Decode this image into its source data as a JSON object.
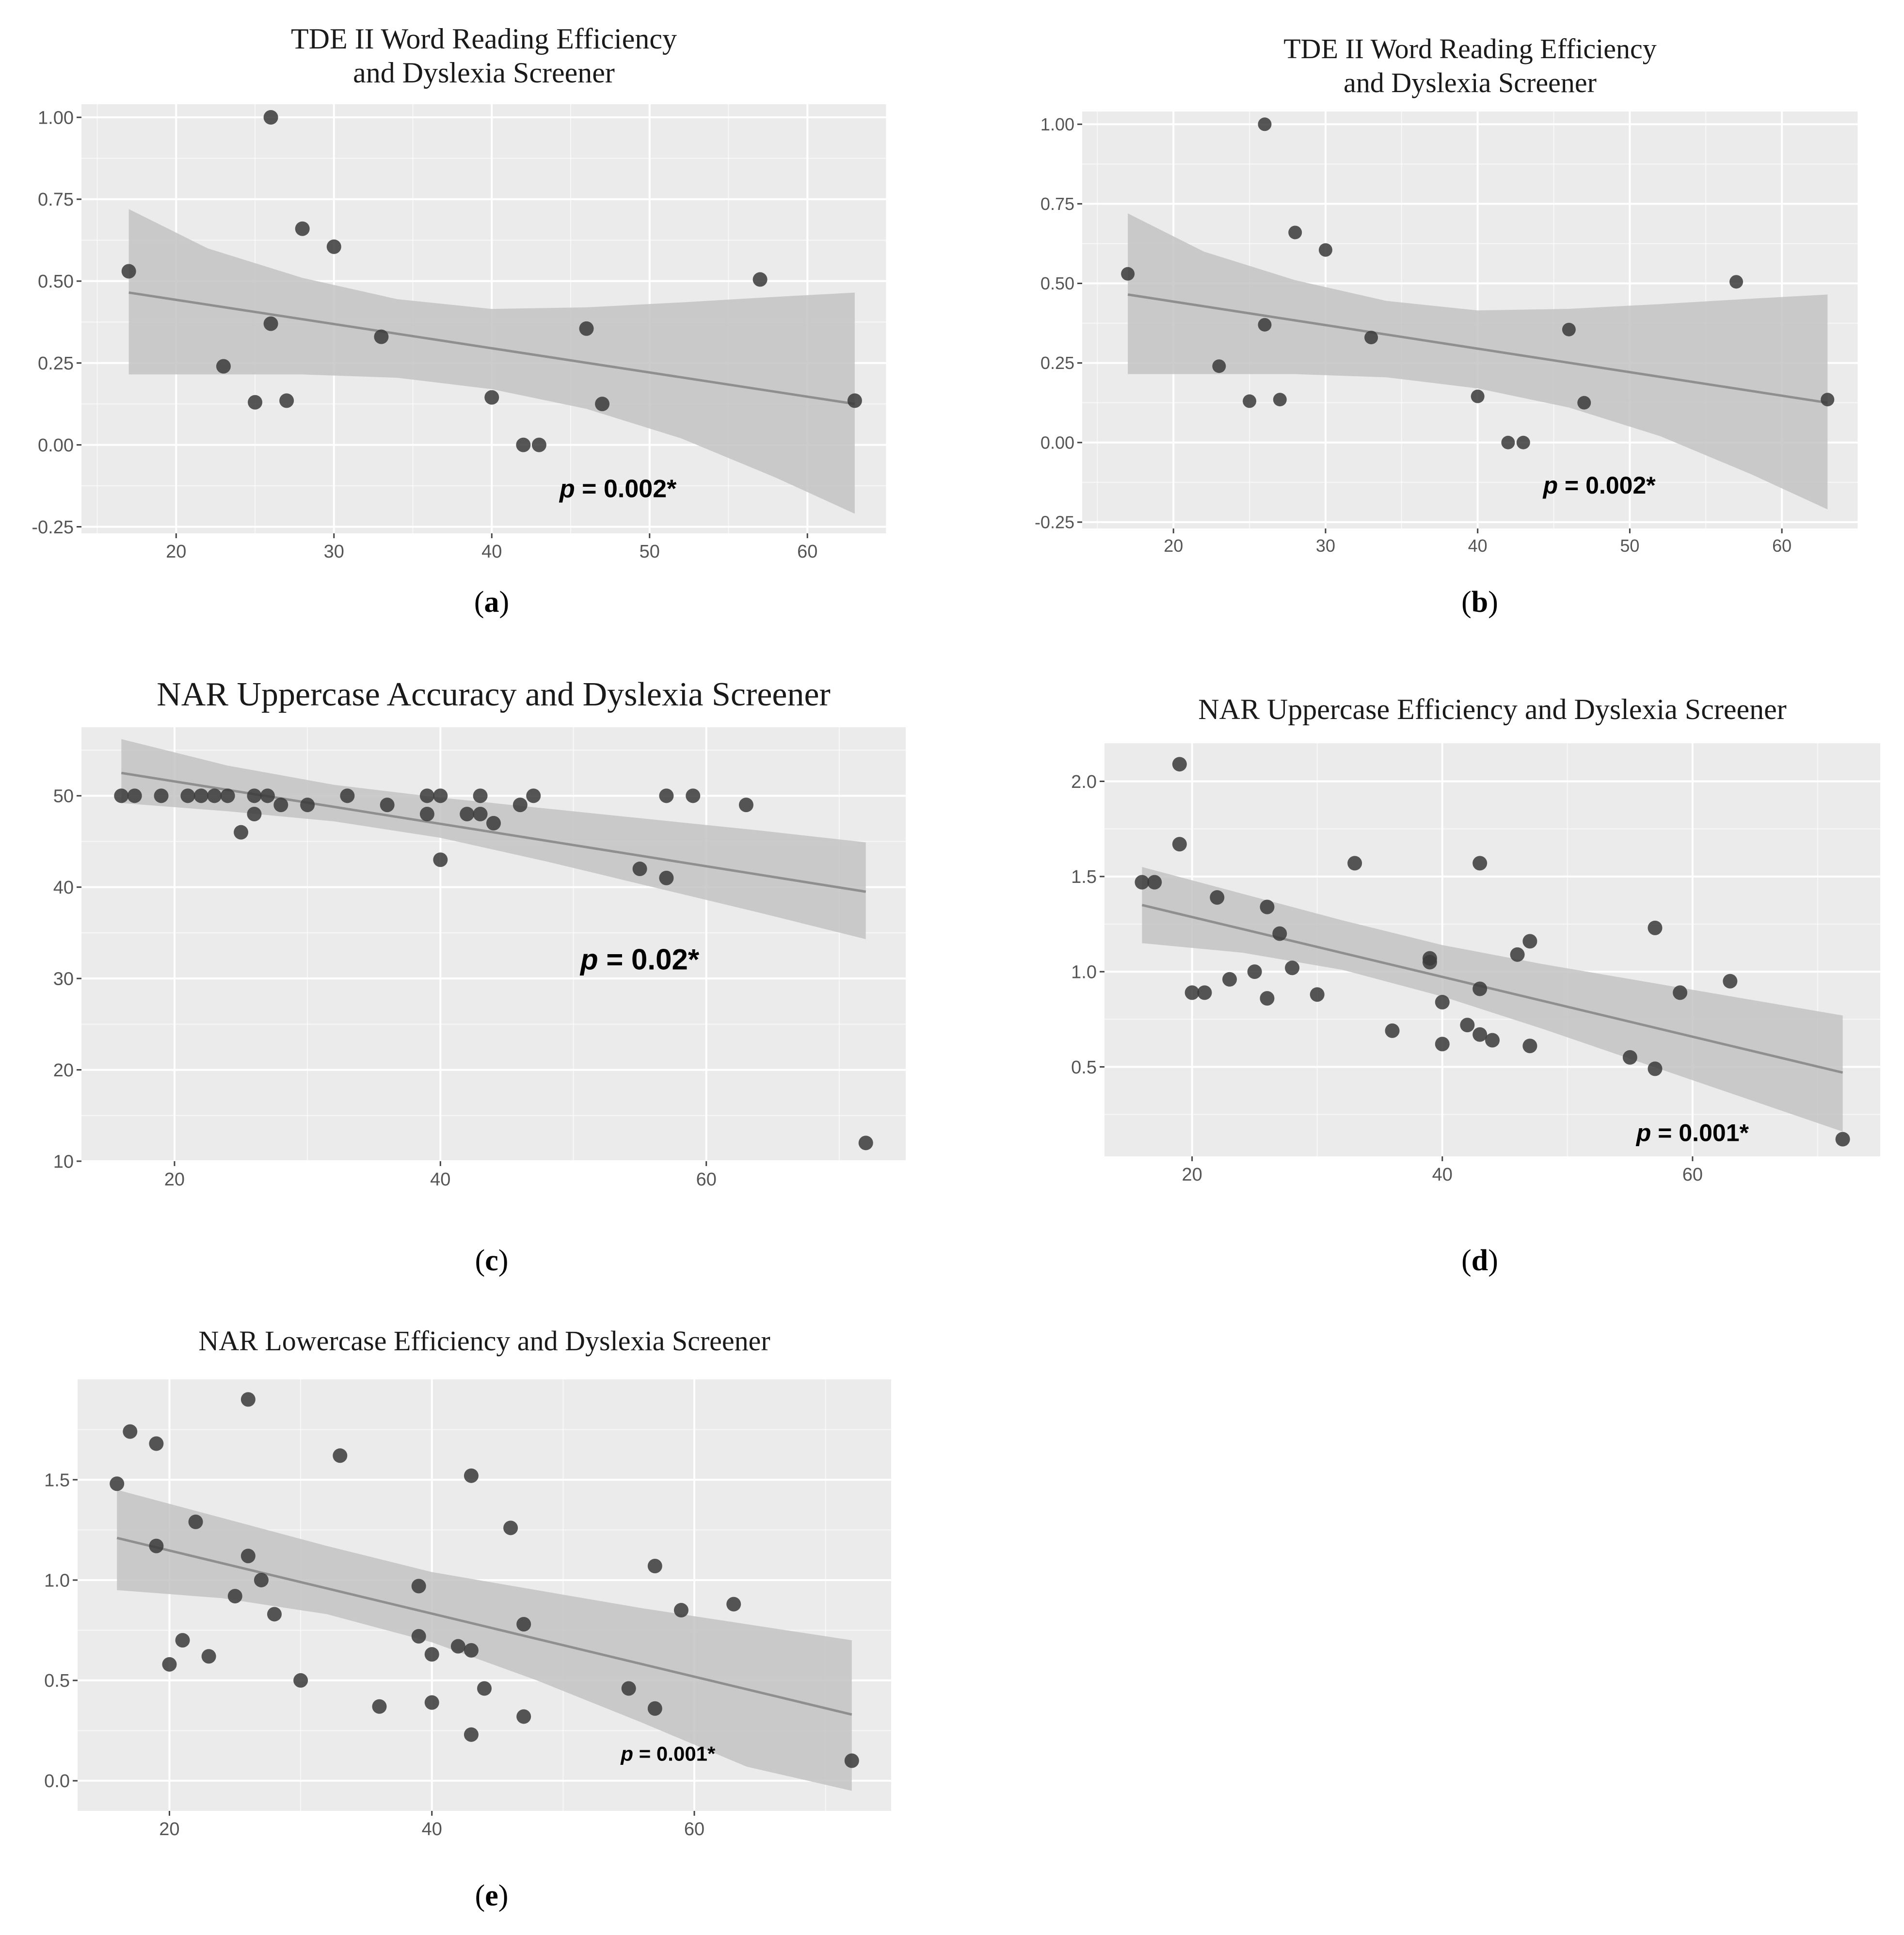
{
  "figure": {
    "panels": [
      "a",
      "b",
      "c",
      "d",
      "e"
    ],
    "captions": {
      "a": {
        "open": "(",
        "letter": "a",
        "close": ")"
      },
      "b": {
        "open": "(",
        "letter": "b",
        "close": ")"
      },
      "c": {
        "open": "(",
        "letter": "c",
        "close": ")"
      },
      "d": {
        "open": "(",
        "letter": "d",
        "close": ")"
      },
      "e": {
        "open": "(",
        "letter": "e",
        "close": ")"
      }
    }
  },
  "colors": {
    "panel_bg": "#ebebeb",
    "grid": "#ffffff",
    "ribbon": "#c3c3c3",
    "line": "#8f8f8f",
    "point": "#3a3a3a"
  },
  "chart_data": [
    {
      "id": "a",
      "type": "scatter",
      "title": [
        "TDE II Word Reading Efficiency",
        "and Dyslexia Screener"
      ],
      "xlabel": "",
      "ylabel": "",
      "xlim": [
        14,
        65
      ],
      "ylim": [
        -0.27,
        1.04
      ],
      "xticks": [
        20,
        30,
        40,
        50,
        60
      ],
      "yticks": [
        -0.25,
        0,
        0.25,
        0.5,
        0.75,
        1.0
      ],
      "ytick_labels": [
        "-0.25",
        "0.00",
        "0.25",
        "0.50",
        "0.75",
        "1.00"
      ],
      "points": [
        [
          17,
          0.53
        ],
        [
          23,
          0.24
        ],
        [
          25,
          0.13
        ],
        [
          26,
          1.0
        ],
        [
          26,
          0.37
        ],
        [
          27,
          0.135
        ],
        [
          28,
          0.66
        ],
        [
          30,
          0.605
        ],
        [
          33,
          0.33
        ],
        [
          40,
          0.145
        ],
        [
          42,
          0.0
        ],
        [
          43,
          0.0
        ],
        [
          46,
          0.355
        ],
        [
          47,
          0.125
        ],
        [
          57,
          0.505
        ],
        [
          63,
          0.135
        ]
      ],
      "fit": {
        "x": [
          17,
          63
        ],
        "y": [
          0.465,
          0.125
        ]
      },
      "ribbon": {
        "x": [
          17,
          22,
          28,
          34,
          40,
          46,
          52,
          58,
          63
        ],
        "lower": [
          0.215,
          0.215,
          0.215,
          0.205,
          0.17,
          0.11,
          0.02,
          -0.1,
          -0.21
        ],
        "upper": [
          0.72,
          0.6,
          0.51,
          0.445,
          0.415,
          0.42,
          0.435,
          0.452,
          0.465
        ]
      },
      "annotation": {
        "prefix": "p",
        "text": " = 0.002*",
        "x": 48,
        "y": -0.16
      }
    },
    {
      "id": "b",
      "type": "scatter",
      "title": [
        "TDE II Word Reading Efficiency",
        "and Dyslexia Screener"
      ],
      "xlabel": "",
      "ylabel": "",
      "xlim": [
        14,
        65
      ],
      "ylim": [
        -0.27,
        1.04
      ],
      "xticks": [
        20,
        30,
        40,
        50,
        60
      ],
      "yticks": [
        -0.25,
        0,
        0.25,
        0.5,
        0.75,
        1.0
      ],
      "ytick_labels": [
        "-0.25",
        "0.00",
        "0.25",
        "0.50",
        "0.75",
        "1.00"
      ],
      "points": [
        [
          17,
          0.53
        ],
        [
          23,
          0.24
        ],
        [
          25,
          0.13
        ],
        [
          26,
          1.0
        ],
        [
          26,
          0.37
        ],
        [
          27,
          0.135
        ],
        [
          28,
          0.66
        ],
        [
          30,
          0.605
        ],
        [
          33,
          0.33
        ],
        [
          40,
          0.145
        ],
        [
          42,
          0.0
        ],
        [
          43,
          0.0
        ],
        [
          46,
          0.355
        ],
        [
          47,
          0.125
        ],
        [
          57,
          0.505
        ],
        [
          63,
          0.135
        ]
      ],
      "fit": {
        "x": [
          17,
          63
        ],
        "y": [
          0.465,
          0.125
        ]
      },
      "ribbon": {
        "x": [
          17,
          22,
          28,
          34,
          40,
          46,
          52,
          58,
          63
        ],
        "lower": [
          0.215,
          0.215,
          0.215,
          0.205,
          0.17,
          0.11,
          0.02,
          -0.1,
          -0.21
        ],
        "upper": [
          0.72,
          0.6,
          0.51,
          0.445,
          0.415,
          0.42,
          0.435,
          0.452,
          0.465
        ]
      },
      "annotation": {
        "prefix": "p",
        "text": " = 0.002*",
        "x": 48,
        "y": -0.16
      }
    },
    {
      "id": "c",
      "type": "scatter",
      "title": [
        "NAR Uppercase Accuracy and Dyslexia Screener"
      ],
      "xlabel": "",
      "ylabel": "",
      "xlim": [
        13,
        75
      ],
      "ylim": [
        10,
        57.5
      ],
      "xticks": [
        20,
        40,
        60
      ],
      "yticks": [
        10,
        20,
        30,
        40,
        50
      ],
      "ytick_labels": [
        "10",
        "20",
        "30",
        "40",
        "50"
      ],
      "points": [
        [
          16,
          50
        ],
        [
          17,
          50
        ],
        [
          19,
          50
        ],
        [
          21,
          50
        ],
        [
          22,
          50
        ],
        [
          23,
          50
        ],
        [
          24,
          50
        ],
        [
          25,
          46
        ],
        [
          26,
          48
        ],
        [
          26,
          50
        ],
        [
          27,
          50
        ],
        [
          28,
          49
        ],
        [
          30,
          49
        ],
        [
          33,
          50
        ],
        [
          36,
          49
        ],
        [
          39,
          50
        ],
        [
          39,
          48
        ],
        [
          40,
          50
        ],
        [
          40,
          43
        ],
        [
          42,
          48
        ],
        [
          43,
          50
        ],
        [
          43,
          48
        ],
        [
          44,
          47
        ],
        [
          46,
          49
        ],
        [
          47,
          50
        ],
        [
          55,
          42
        ],
        [
          57,
          50
        ],
        [
          57,
          41
        ],
        [
          59,
          50
        ],
        [
          63,
          49
        ],
        [
          72,
          12
        ]
      ],
      "fit": {
        "x": [
          16,
          72
        ],
        "y": [
          52.5,
          39.5
        ]
      },
      "ribbon": {
        "x": [
          16,
          24,
          32,
          40,
          48,
          56,
          64,
          72
        ],
        "lower": [
          49.2,
          48.3,
          47.2,
          45.4,
          42.8,
          40.0,
          37.2,
          34.3
        ],
        "upper": [
          56.2,
          53.3,
          51.2,
          49.8,
          48.6,
          47.4,
          46.2,
          44.9
        ]
      },
      "annotation": {
        "prefix": "p",
        "text": " = 0.02*",
        "x": 55,
        "y": 31
      }
    },
    {
      "id": "d",
      "type": "scatter",
      "title": [
        "NAR Uppercase Efficiency and Dyslexia Screener"
      ],
      "xlabel": "",
      "ylabel": "",
      "xlim": [
        13,
        75
      ],
      "ylim": [
        0.03,
        2.2
      ],
      "xticks": [
        20,
        40,
        60
      ],
      "yticks": [
        0.5,
        1.0,
        1.5,
        2.0
      ],
      "ytick_labels": [
        "0.5",
        "1.0",
        "1.5",
        "2.0"
      ],
      "points": [
        [
          16,
          1.47
        ],
        [
          17,
          1.47
        ],
        [
          19,
          2.09
        ],
        [
          19,
          1.67
        ],
        [
          20,
          0.89
        ],
        [
          21,
          0.89
        ],
        [
          22,
          1.39
        ],
        [
          23,
          0.96
        ],
        [
          25,
          1.0
        ],
        [
          26,
          0.86
        ],
        [
          26,
          1.34
        ],
        [
          27,
          1.2
        ],
        [
          28,
          1.02
        ],
        [
          30,
          0.88
        ],
        [
          33,
          1.57
        ],
        [
          36,
          0.69
        ],
        [
          39,
          1.05
        ],
        [
          39,
          1.07
        ],
        [
          40,
          0.84
        ],
        [
          40,
          0.62
        ],
        [
          42,
          0.72
        ],
        [
          43,
          0.91
        ],
        [
          43,
          0.67
        ],
        [
          43,
          1.57
        ],
        [
          44,
          0.64
        ],
        [
          46,
          1.09
        ],
        [
          47,
          1.16
        ],
        [
          47,
          0.61
        ],
        [
          55,
          0.55
        ],
        [
          57,
          0.49
        ],
        [
          57,
          1.23
        ],
        [
          59,
          0.89
        ],
        [
          63,
          0.95
        ],
        [
          72,
          0.12
        ]
      ],
      "fit": {
        "x": [
          16,
          72
        ],
        "y": [
          1.35,
          0.47
        ]
      },
      "ribbon": {
        "x": [
          16,
          24,
          32,
          40,
          48,
          56,
          64,
          72
        ],
        "lower": [
          1.15,
          1.1,
          1.01,
          0.87,
          0.7,
          0.52,
          0.34,
          0.16
        ],
        "upper": [
          1.55,
          1.41,
          1.27,
          1.14,
          1.04,
          0.95,
          0.86,
          0.77
        ]
      },
      "annotation": {
        "prefix": "p",
        "text": " = 0.001*",
        "x": 60,
        "y": 0.11
      }
    },
    {
      "id": "e",
      "type": "scatter",
      "title": [
        "NAR Lowercase Efficiency and Dyslexia Screener"
      ],
      "xlabel": "",
      "ylabel": "",
      "xlim": [
        13,
        75
      ],
      "ylim": [
        -0.15,
        2.0
      ],
      "xticks": [
        20,
        40,
        60
      ],
      "yticks": [
        0,
        0.5,
        1.0,
        1.5
      ],
      "ytick_labels": [
        "0.0",
        "0.5",
        "1.0",
        "1.5"
      ],
      "points": [
        [
          16,
          1.48
        ],
        [
          17,
          1.74
        ],
        [
          19,
          1.68
        ],
        [
          19,
          1.17
        ],
        [
          20,
          0.58
        ],
        [
          21,
          0.7
        ],
        [
          22,
          1.29
        ],
        [
          23,
          0.62
        ],
        [
          25,
          0.92
        ],
        [
          26,
          1.12
        ],
        [
          26,
          1.9
        ],
        [
          27,
          1.0
        ],
        [
          28,
          0.83
        ],
        [
          30,
          0.5
        ],
        [
          33,
          1.62
        ],
        [
          36,
          0.37
        ],
        [
          39,
          0.97
        ],
        [
          39,
          0.72
        ],
        [
          40,
          0.63
        ],
        [
          40,
          0.39
        ],
        [
          42,
          0.67
        ],
        [
          43,
          0.65
        ],
        [
          43,
          1.52
        ],
        [
          43,
          0.23
        ],
        [
          44,
          0.46
        ],
        [
          46,
          1.26
        ],
        [
          47,
          0.78
        ],
        [
          47,
          0.32
        ],
        [
          55,
          0.46
        ],
        [
          57,
          0.36
        ],
        [
          57,
          1.07
        ],
        [
          59,
          0.85
        ],
        [
          63,
          0.88
        ],
        [
          72,
          0.1
        ]
      ],
      "fit": {
        "x": [
          16,
          72
        ],
        "y": [
          1.21,
          0.33
        ]
      },
      "ribbon": {
        "x": [
          16,
          24,
          32,
          40,
          48,
          56,
          64,
          72
        ],
        "lower": [
          0.95,
          0.91,
          0.83,
          0.69,
          0.5,
          0.29,
          0.07,
          -0.05
        ],
        "upper": [
          1.45,
          1.31,
          1.17,
          1.04,
          0.95,
          0.86,
          0.78,
          0.7
        ]
      },
      "annotation": {
        "prefix": "p",
        "text": " = 0.001*",
        "x": 58,
        "y": 0.1
      }
    }
  ]
}
